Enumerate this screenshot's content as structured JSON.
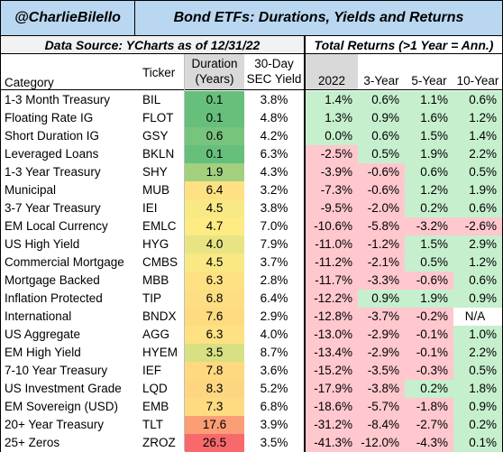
{
  "header": {
    "handle": "@CharlieBilello",
    "title": "Bond ETFs: Durations, Yields and Returns",
    "source": "Data Source: YCharts as of 12/31/22",
    "returns_title": "Total Returns (>1 Year = Ann.)"
  },
  "columns": {
    "category": "Category",
    "ticker": "Ticker",
    "duration_line1": "Duration",
    "duration_line2": "(Years)",
    "yield_line1": "30-Day",
    "yield_line2": "SEC Yield",
    "ret_2022": "2022",
    "ret_3y": "3-Year",
    "ret_5y": "5-Year",
    "ret_10y": "10-Year"
  },
  "colors": {
    "header_blue": "#b9d7f0",
    "positive_green": "#c6efce",
    "negative_red": "#ffc7ce",
    "neutral": "#ffffff",
    "grey_band": "#d9d9d9"
  },
  "chart_data": {
    "type": "table",
    "rows": [
      {
        "category": "1-3 Month Treasury",
        "ticker": "BIL",
        "duration": "0.1",
        "yield": "3.8%",
        "r2022": "1.4%",
        "r3y": "0.6%",
        "r5y": "1.1%",
        "r10y": "0.6%"
      },
      {
        "category": "Floating Rate IG",
        "ticker": "FLOT",
        "duration": "0.1",
        "yield": "4.8%",
        "r2022": "1.3%",
        "r3y": "0.9%",
        "r5y": "1.6%",
        "r10y": "1.2%"
      },
      {
        "category": "Short Duration IG",
        "ticker": "GSY",
        "duration": "0.6",
        "yield": "4.2%",
        "r2022": "0.0%",
        "r3y": "0.6%",
        "r5y": "1.5%",
        "r10y": "1.4%"
      },
      {
        "category": "Leveraged Loans",
        "ticker": "BKLN",
        "duration": "0.1",
        "yield": "6.3%",
        "r2022": "-2.5%",
        "r3y": "0.5%",
        "r5y": "1.9%",
        "r10y": "2.2%"
      },
      {
        "category": "1-3 Year Treasury",
        "ticker": "SHY",
        "duration": "1.9",
        "yield": "4.3%",
        "r2022": "-3.9%",
        "r3y": "-0.6%",
        "r5y": "0.6%",
        "r10y": "0.5%"
      },
      {
        "category": "Municipal",
        "ticker": "MUB",
        "duration": "6.4",
        "yield": "3.2%",
        "r2022": "-7.3%",
        "r3y": "-0.6%",
        "r5y": "1.2%",
        "r10y": "1.9%"
      },
      {
        "category": "3-7 Year Treasury",
        "ticker": "IEI",
        "duration": "4.5",
        "yield": "3.8%",
        "r2022": "-9.5%",
        "r3y": "-2.0%",
        "r5y": "0.2%",
        "r10y": "0.6%"
      },
      {
        "category": "EM Local Currency",
        "ticker": "EMLC",
        "duration": "4.7",
        "yield": "7.0%",
        "r2022": "-10.6%",
        "r3y": "-5.8%",
        "r5y": "-3.2%",
        "r10y": "-2.6%"
      },
      {
        "category": "US High Yield",
        "ticker": "HYG",
        "duration": "4.0",
        "yield": "7.9%",
        "r2022": "-11.0%",
        "r3y": "-1.2%",
        "r5y": "1.5%",
        "r10y": "2.9%"
      },
      {
        "category": "Commercial Mortgage",
        "ticker": "CMBS",
        "duration": "4.5",
        "yield": "3.7%",
        "r2022": "-11.2%",
        "r3y": "-2.1%",
        "r5y": "0.5%",
        "r10y": "1.2%"
      },
      {
        "category": "Mortgage Backed",
        "ticker": "MBB",
        "duration": "6.3",
        "yield": "2.8%",
        "r2022": "-11.7%",
        "r3y": "-3.3%",
        "r5y": "-0.6%",
        "r10y": "0.6%"
      },
      {
        "category": "Inflation Protected",
        "ticker": "TIP",
        "duration": "6.8",
        "yield": "6.4%",
        "r2022": "-12.2%",
        "r3y": "0.9%",
        "r5y": "1.9%",
        "r10y": "0.9%"
      },
      {
        "category": "International",
        "ticker": "BNDX",
        "duration": "7.6",
        "yield": "2.9%",
        "r2022": "-12.8%",
        "r3y": "-3.7%",
        "r5y": "-0.2%",
        "r10y": "N/A"
      },
      {
        "category": "US Aggregate",
        "ticker": "AGG",
        "duration": "6.3",
        "yield": "4.0%",
        "r2022": "-13.0%",
        "r3y": "-2.9%",
        "r5y": "-0.1%",
        "r10y": "1.0%"
      },
      {
        "category": "EM High Yield",
        "ticker": "HYEM",
        "duration": "3.5",
        "yield": "8.7%",
        "r2022": "-13.4%",
        "r3y": "-2.9%",
        "r5y": "-0.1%",
        "r10y": "2.2%"
      },
      {
        "category": "7-10 Year Treasury",
        "ticker": "IEF",
        "duration": "7.8",
        "yield": "3.6%",
        "r2022": "-15.2%",
        "r3y": "-3.5%",
        "r5y": "-0.3%",
        "r10y": "0.5%"
      },
      {
        "category": "US Investment Grade",
        "ticker": "LQD",
        "duration": "8.3",
        "yield": "5.2%",
        "r2022": "-17.9%",
        "r3y": "-3.8%",
        "r5y": "0.2%",
        "r10y": "1.8%"
      },
      {
        "category": "EM Sovereign (USD)",
        "ticker": "EMB",
        "duration": "7.3",
        "yield": "6.8%",
        "r2022": "-18.6%",
        "r3y": "-5.7%",
        "r5y": "-1.8%",
        "r10y": "0.9%"
      },
      {
        "category": "20+ Year Treasury",
        "ticker": "TLT",
        "duration": "17.6",
        "yield": "3.9%",
        "r2022": "-31.2%",
        "r3y": "-8.4%",
        "r5y": "-2.7%",
        "r10y": "0.2%"
      },
      {
        "category": "25+ Zeros",
        "ticker": "ZROZ",
        "duration": "26.5",
        "yield": "3.5%",
        "r2022": "-41.3%",
        "r3y": "-12.0%",
        "r5y": "-4.3%",
        "r10y": "0.1%"
      }
    ]
  }
}
